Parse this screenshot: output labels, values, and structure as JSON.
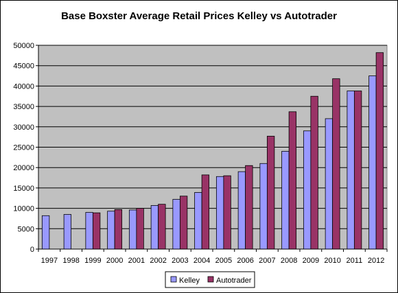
{
  "chart_data": {
    "type": "bar",
    "title": "Base Boxster Average Retail Prices Kelley vs Autotrader",
    "xlabel": "",
    "ylabel": "",
    "categories": [
      "1997",
      "1998",
      "1999",
      "2000",
      "2001",
      "2002",
      "2003",
      "2004",
      "2005",
      "2006",
      "2007",
      "2008",
      "2009",
      "2010",
      "2011",
      "2012"
    ],
    "series": [
      {
        "name": "Kelley",
        "color": "#9999FF",
        "values": [
          8200,
          8500,
          9000,
          9300,
          9600,
          10700,
          12200,
          13900,
          17800,
          19000,
          21000,
          24000,
          29000,
          32000,
          38800,
          42500
        ]
      },
      {
        "name": "Autotrader",
        "color": "#993366",
        "values": [
          null,
          null,
          8900,
          9700,
          10000,
          11000,
          13000,
          18200,
          18000,
          20500,
          27700,
          33700,
          37500,
          41800,
          38800,
          48200
        ]
      }
    ],
    "ylim": [
      0,
      50000
    ],
    "yticks": [
      0,
      5000,
      10000,
      15000,
      20000,
      25000,
      30000,
      35000,
      40000,
      45000,
      50000
    ],
    "grid": true,
    "plot_background": "#C0C0C0",
    "legend_placement": "bottom"
  }
}
